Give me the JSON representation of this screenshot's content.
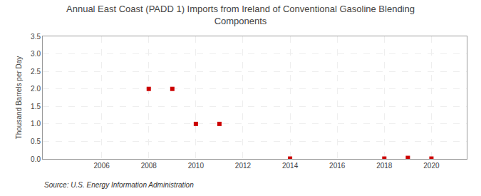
{
  "chart_data": {
    "type": "scatter",
    "title": "Annual East Coast (PADD 1) Imports from Ireland of Conventional Gasoline Blending\nComponents",
    "ylabel": "Thousand Barrels per Day",
    "annotations": [
      "Source: U.S. Energy Information Administration"
    ],
    "x": [
      2008,
      2009,
      2010,
      2011,
      2014,
      2018,
      2019,
      2020
    ],
    "values": [
      2.0,
      2.0,
      1.0,
      1.0,
      0.01,
      0.01,
      0.03,
      0.01
    ],
    "color": "#cc0000",
    "marker": "square",
    "xlim": [
      2003.5,
      2021.5
    ],
    "xticks": [
      2006,
      2008,
      2010,
      2012,
      2014,
      2016,
      2018,
      2020
    ],
    "ylim": [
      0,
      3.5
    ],
    "yticks": [
      {
        "value": 0,
        "label": "0.0"
      },
      0.5,
      {
        "value": 1,
        "label": "1.0"
      },
      1.5,
      {
        "value": 2,
        "label": "2.0"
      },
      2.5,
      {
        "value": 3,
        "label": "3.0"
      },
      3.5
    ],
    "grid": true
  }
}
